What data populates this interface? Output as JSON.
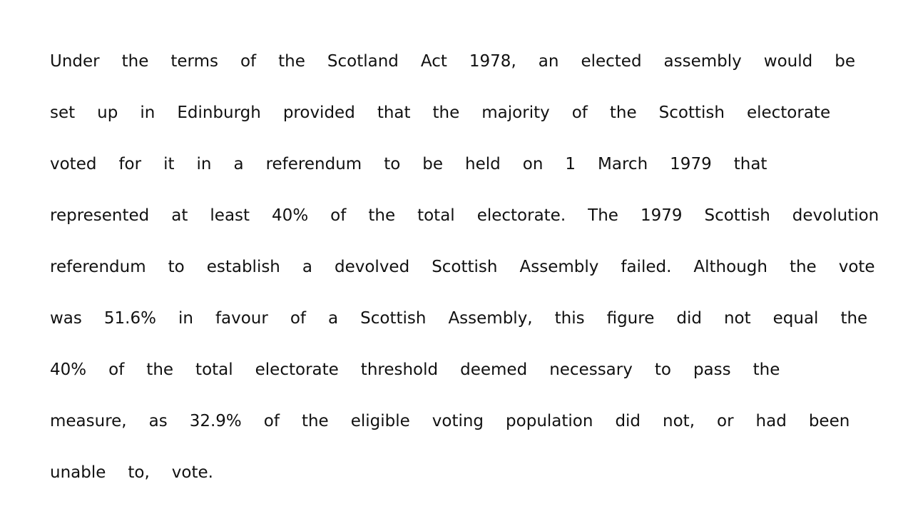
{
  "document": {
    "lines": [
      "Under the terms of the Scotland Act 1978, an elected assembly would be",
      "set up in Edinburgh provided that the majority of the Scottish electorate",
      "voted for it in a referendum to be held on 1 March 1979 that",
      "represented at least 40% of the total electorate. The 1979 Scottish devolution",
      "referendum to establish a devolved Scottish Assembly failed. Although the vote",
      "was 51.6% in favour of a Scottish Assembly, this figure did not equal the",
      "40% of the total electorate threshold deemed necessary to pass the",
      "measure, as 32.9% of the eligible voting population did not, or had been",
      "unable to, vote."
    ]
  }
}
